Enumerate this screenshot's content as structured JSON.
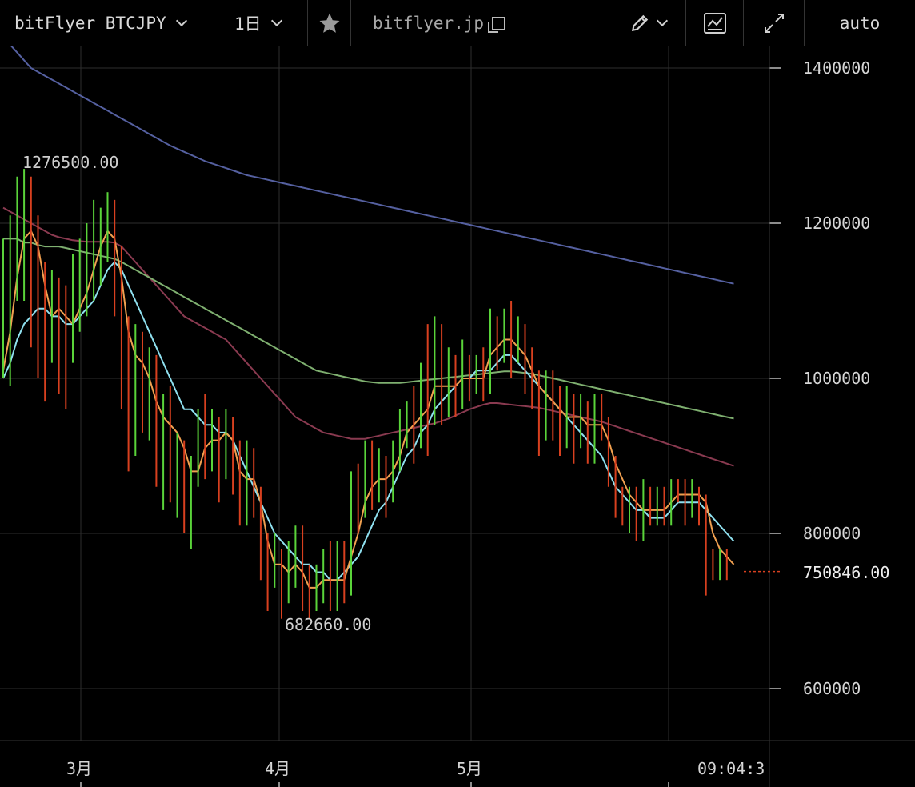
{
  "toolbar": {
    "symbol": "bitFlyer BTCJPY",
    "interval": "1日",
    "site": "bitflyer.jp",
    "scale_mode": "auto",
    "icons": [
      "chevron-down-icon",
      "star-icon",
      "copy-icon",
      "pencil-icon",
      "indicator-icon",
      "expand-icon"
    ]
  },
  "colors": {
    "up": "#5ad43a",
    "down": "#d8401f",
    "ma_short": "#f0a050",
    "ma_cyan": "#8fe0ef",
    "ma_green": "#7fb070",
    "ma_maroon": "#8a3a50",
    "ma_long": "#5560a0",
    "grid": "#2e2e2e"
  },
  "chart_data": {
    "type": "candlestick",
    "y_range": [
      560000,
      1420000
    ],
    "y_ticks": [
      "1400000",
      "1200000",
      "1000000",
      "800000",
      "600000"
    ],
    "x_ticks": [
      "3月",
      "4月",
      "5月",
      "09:04:3"
    ],
    "high_label": "1276500.00",
    "low_label": "682660.00",
    "last_price": "750846.00",
    "last_value": 750846,
    "candles": [
      [
        1010000,
        1060000,
        1000000,
        1180000
      ],
      [
        1060000,
        1160000,
        990000,
        1210000
      ],
      [
        1160000,
        1190000,
        1100000,
        1260000
      ],
      [
        1190000,
        1200000,
        1100000,
        1270000
      ],
      [
        1200000,
        1160000,
        1040000,
        1260000
      ],
      [
        1150000,
        1110000,
        1000000,
        1210000
      ],
      [
        1110000,
        1050000,
        970000,
        1150000
      ],
      [
        1050000,
        1100000,
        1020000,
        1140000
      ],
      [
        1100000,
        1080000,
        980000,
        1130000
      ],
      [
        1080000,
        1040000,
        960000,
        1120000
      ],
      [
        1040000,
        1090000,
        1020000,
        1160000
      ],
      [
        1090000,
        1110000,
        1060000,
        1180000
      ],
      [
        1110000,
        1150000,
        1080000,
        1200000
      ],
      [
        1150000,
        1180000,
        1100000,
        1230000
      ],
      [
        1180000,
        1190000,
        1120000,
        1220000
      ],
      [
        1190000,
        1200000,
        1150000,
        1240000
      ],
      [
        1200000,
        1160000,
        1080000,
        1230000
      ],
      [
        1160000,
        1020000,
        960000,
        1170000
      ],
      [
        1020000,
        920000,
        880000,
        1080000
      ],
      [
        920000,
        1050000,
        900000,
        1070000
      ],
      [
        1050000,
        960000,
        930000,
        1060000
      ],
      [
        960000,
        1010000,
        920000,
        1040000
      ],
      [
        1010000,
        920000,
        860000,
        1030000
      ],
      [
        920000,
        960000,
        830000,
        980000
      ],
      [
        960000,
        880000,
        840000,
        990000
      ],
      [
        880000,
        910000,
        820000,
        930000
      ],
      [
        910000,
        820000,
        800000,
        920000
      ],
      [
        820000,
        880000,
        780000,
        900000
      ],
      [
        880000,
        940000,
        860000,
        960000
      ],
      [
        940000,
        900000,
        870000,
        980000
      ],
      [
        900000,
        930000,
        880000,
        960000
      ],
      [
        930000,
        890000,
        840000,
        950000
      ],
      [
        890000,
        940000,
        870000,
        960000
      ],
      [
        940000,
        880000,
        850000,
        950000
      ],
      [
        880000,
        830000,
        810000,
        920000
      ],
      [
        830000,
        900000,
        810000,
        920000
      ],
      [
        900000,
        840000,
        820000,
        910000
      ],
      [
        840000,
        780000,
        740000,
        860000
      ],
      [
        780000,
        740000,
        700000,
        800000
      ],
      [
        740000,
        770000,
        730000,
        800000
      ],
      [
        770000,
        720000,
        690000,
        780000
      ],
      [
        720000,
        760000,
        710000,
        790000
      ],
      [
        760000,
        800000,
        730000,
        810000
      ],
      [
        800000,
        740000,
        700000,
        810000
      ],
      [
        740000,
        710000,
        690000,
        760000
      ],
      [
        710000,
        730000,
        700000,
        760000
      ],
      [
        730000,
        760000,
        710000,
        780000
      ],
      [
        760000,
        720000,
        700000,
        790000
      ],
      [
        720000,
        760000,
        700000,
        790000
      ],
      [
        760000,
        730000,
        710000,
        790000
      ],
      [
        730000,
        860000,
        720000,
        880000
      ],
      [
        860000,
        830000,
        800000,
        890000
      ],
      [
        830000,
        900000,
        820000,
        920000
      ],
      [
        900000,
        860000,
        830000,
        920000
      ],
      [
        860000,
        880000,
        840000,
        910000
      ],
      [
        880000,
        850000,
        820000,
        900000
      ],
      [
        850000,
        900000,
        840000,
        920000
      ],
      [
        900000,
        940000,
        880000,
        960000
      ],
      [
        940000,
        960000,
        910000,
        970000
      ],
      [
        960000,
        920000,
        890000,
        990000
      ],
      [
        920000,
        980000,
        910000,
        1020000
      ],
      [
        980000,
        950000,
        900000,
        1070000
      ],
      [
        950000,
        1060000,
        940000,
        1080000
      ],
      [
        1060000,
        960000,
        940000,
        1070000
      ],
      [
        960000,
        1000000,
        950000,
        1040000
      ],
      [
        1000000,
        970000,
        950000,
        1030000
      ],
      [
        970000,
        1020000,
        960000,
        1050000
      ],
      [
        1020000,
        990000,
        970000,
        1030000
      ],
      [
        990000,
        1010000,
        980000,
        1030000
      ],
      [
        1010000,
        1000000,
        970000,
        1040000
      ],
      [
        1000000,
        1070000,
        980000,
        1090000
      ],
      [
        1070000,
        1040000,
        1010000,
        1080000
      ],
      [
        1040000,
        1080000,
        1020000,
        1090000
      ],
      [
        1080000,
        1040000,
        1000000,
        1100000
      ],
      [
        1040000,
        1060000,
        1020000,
        1080000
      ],
      [
        1060000,
        1030000,
        980000,
        1070000
      ],
      [
        1030000,
        990000,
        960000,
        1040000
      ],
      [
        990000,
        930000,
        900000,
        1010000
      ],
      [
        930000,
        1000000,
        920000,
        1010000
      ],
      [
        1000000,
        960000,
        920000,
        1010000
      ],
      [
        960000,
        920000,
        900000,
        990000
      ],
      [
        920000,
        970000,
        910000,
        990000
      ],
      [
        970000,
        940000,
        890000,
        980000
      ],
      [
        940000,
        950000,
        910000,
        980000
      ],
      [
        950000,
        920000,
        890000,
        970000
      ],
      [
        920000,
        960000,
        890000,
        980000
      ],
      [
        960000,
        930000,
        920000,
        980000
      ],
      [
        930000,
        890000,
        860000,
        950000
      ],
      [
        890000,
        840000,
        820000,
        900000
      ],
      [
        840000,
        820000,
        810000,
        860000
      ],
      [
        820000,
        840000,
        800000,
        860000
      ],
      [
        840000,
        810000,
        790000,
        860000
      ],
      [
        810000,
        850000,
        790000,
        870000
      ],
      [
        850000,
        820000,
        810000,
        860000
      ],
      [
        820000,
        850000,
        810000,
        860000
      ],
      [
        850000,
        820000,
        810000,
        860000
      ],
      [
        820000,
        860000,
        810000,
        870000
      ],
      [
        860000,
        850000,
        840000,
        870000
      ],
      [
        850000,
        840000,
        810000,
        870000
      ],
      [
        840000,
        860000,
        820000,
        870000
      ],
      [
        860000,
        830000,
        810000,
        860000
      ],
      [
        830000,
        760000,
        720000,
        850000
      ],
      [
        760000,
        750000,
        740000,
        780000
      ],
      [
        750000,
        770000,
        740000,
        780000
      ],
      [
        770000,
        750000,
        740000,
        780000
      ]
    ],
    "ma_short": [
      1010000,
      1060000,
      1130000,
      1180000,
      1190000,
      1170000,
      1120000,
      1080000,
      1090000,
      1080000,
      1070000,
      1090000,
      1110000,
      1140000,
      1170000,
      1190000,
      1180000,
      1130000,
      1060000,
      1030000,
      1020000,
      1000000,
      970000,
      950000,
      940000,
      930000,
      910000,
      880000,
      880000,
      910000,
      920000,
      920000,
      930000,
      920000,
      880000,
      870000,
      870000,
      840000,
      790000,
      760000,
      760000,
      750000,
      760000,
      750000,
      730000,
      730000,
      740000,
      740000,
      740000,
      740000,
      770000,
      800000,
      840000,
      860000,
      870000,
      870000,
      880000,
      900000,
      930000,
      940000,
      950000,
      960000,
      990000,
      990000,
      990000,
      990000,
      1000000,
      1000000,
      1000000,
      1000000,
      1030000,
      1040000,
      1050000,
      1050000,
      1040000,
      1030000,
      1010000,
      990000,
      980000,
      970000,
      960000,
      950000,
      950000,
      950000,
      940000,
      940000,
      940000,
      920000,
      890000,
      870000,
      850000,
      840000,
      830000,
      830000,
      830000,
      830000,
      840000,
      850000,
      850000,
      850000,
      850000,
      840000,
      800000,
      780000,
      770000,
      760000
    ],
    "ma_cyan": [
      1000000,
      1020000,
      1050000,
      1070000,
      1080000,
      1090000,
      1090000,
      1080000,
      1080000,
      1070000,
      1070000,
      1080000,
      1090000,
      1100000,
      1120000,
      1140000,
      1150000,
      1140000,
      1120000,
      1100000,
      1080000,
      1060000,
      1040000,
      1020000,
      1000000,
      980000,
      960000,
      960000,
      950000,
      940000,
      940000,
      930000,
      930000,
      920000,
      900000,
      880000,
      860000,
      840000,
      820000,
      800000,
      790000,
      780000,
      770000,
      760000,
      760000,
      750000,
      750000,
      740000,
      740000,
      750000,
      760000,
      770000,
      790000,
      810000,
      830000,
      840000,
      860000,
      880000,
      900000,
      910000,
      930000,
      940000,
      960000,
      970000,
      980000,
      990000,
      1000000,
      1000000,
      1010000,
      1010000,
      1010000,
      1020000,
      1030000,
      1030000,
      1020000,
      1010000,
      1000000,
      990000,
      980000,
      970000,
      960000,
      950000,
      940000,
      930000,
      920000,
      910000,
      900000,
      880000,
      860000,
      850000,
      840000,
      830000,
      830000,
      820000,
      820000,
      820000,
      830000,
      840000,
      840000,
      840000,
      840000,
      830000,
      820000,
      810000,
      800000,
      790000
    ],
    "ma_green": [
      1180000,
      1180000,
      1180000,
      1175000,
      1175000,
      1172000,
      1170000,
      1170000,
      1170000,
      1168000,
      1166000,
      1164000,
      1162000,
      1160000,
      1158000,
      1156000,
      1154000,
      1150000,
      1145000,
      1140000,
      1135000,
      1130000,
      1125000,
      1120000,
      1115000,
      1110000,
      1105000,
      1100000,
      1095000,
      1090000,
      1085000,
      1080000,
      1075000,
      1070000,
      1065000,
      1060000,
      1055000,
      1050000,
      1045000,
      1040000,
      1035000,
      1030000,
      1025000,
      1020000,
      1015000,
      1010000,
      1008000,
      1006000,
      1004000,
      1002000,
      1000000,
      998000,
      996000,
      995000,
      994000,
      994000,
      994000,
      994000,
      995000,
      996000,
      997000,
      998000,
      999000,
      1000000,
      1001000,
      1002000,
      1003000,
      1004000,
      1005000,
      1006000,
      1007000,
      1008000,
      1009000,
      1009000,
      1008000,
      1007000,
      1006000,
      1004000,
      1002000,
      1000000,
      998000,
      996000,
      994000,
      992000,
      990000,
      988000,
      986000,
      984000,
      982000,
      980000,
      978000,
      976000,
      974000,
      972000,
      970000,
      968000,
      966000,
      964000,
      962000,
      960000,
      958000,
      956000,
      954000,
      952000,
      950000,
      948000
    ],
    "ma_maroon": [
      1220000,
      1215000,
      1210000,
      1205000,
      1200000,
      1195000,
      1190000,
      1185000,
      1182000,
      1180000,
      1178000,
      1177000,
      1176000,
      1176000,
      1176000,
      1176000,
      1175000,
      1170000,
      1160000,
      1150000,
      1140000,
      1130000,
      1120000,
      1110000,
      1100000,
      1090000,
      1080000,
      1075000,
      1070000,
      1065000,
      1060000,
      1055000,
      1050000,
      1040000,
      1030000,
      1020000,
      1010000,
      1000000,
      990000,
      980000,
      970000,
      960000,
      950000,
      945000,
      940000,
      935000,
      930000,
      928000,
      926000,
      924000,
      922000,
      922000,
      922000,
      924000,
      926000,
      928000,
      930000,
      932000,
      934000,
      936000,
      938000,
      940000,
      942000,
      945000,
      948000,
      952000,
      956000,
      960000,
      963000,
      966000,
      968000,
      968000,
      967000,
      966000,
      965000,
      964000,
      963000,
      962000,
      960000,
      958000,
      956000,
      954000,
      952000,
      950000,
      948000,
      946000,
      944000,
      941000,
      938000,
      935000,
      932000,
      929000,
      926000,
      923000,
      920000,
      917000,
      914000,
      911000,
      908000,
      905000,
      902000,
      899000,
      896000,
      893000,
      890000,
      887000
    ],
    "ma_long": [
      1440000,
      1430000,
      1420000,
      1410000,
      1400000,
      1395000,
      1390000,
      1385000,
      1380000,
      1375000,
      1370000,
      1365000,
      1360000,
      1355000,
      1350000,
      1345000,
      1340000,
      1335000,
      1330000,
      1325000,
      1320000,
      1315000,
      1310000,
      1305000,
      1300000,
      1296000,
      1292000,
      1288000,
      1284000,
      1280000,
      1277000,
      1274000,
      1271000,
      1268000,
      1265000,
      1262000,
      1260000,
      1258000,
      1256000,
      1254000,
      1252000,
      1250000,
      1248000,
      1246000,
      1244000,
      1242000,
      1240000,
      1238000,
      1236000,
      1234000,
      1232000,
      1230000,
      1228000,
      1226000,
      1224000,
      1222000,
      1220000,
      1218000,
      1216000,
      1214000,
      1212000,
      1210000,
      1208000,
      1206000,
      1204000,
      1202000,
      1200000,
      1198000,
      1196000,
      1194000,
      1192000,
      1190000,
      1188000,
      1186000,
      1184000,
      1182000,
      1180000,
      1178000,
      1176000,
      1174000,
      1172000,
      1170000,
      1168000,
      1166000,
      1164000,
      1162000,
      1160000,
      1158000,
      1156000,
      1154000,
      1152000,
      1150000,
      1148000,
      1146000,
      1144000,
      1142000,
      1140000,
      1138000,
      1136000,
      1134000,
      1132000,
      1130000,
      1128000,
      1126000,
      1124000,
      1122000
    ]
  }
}
